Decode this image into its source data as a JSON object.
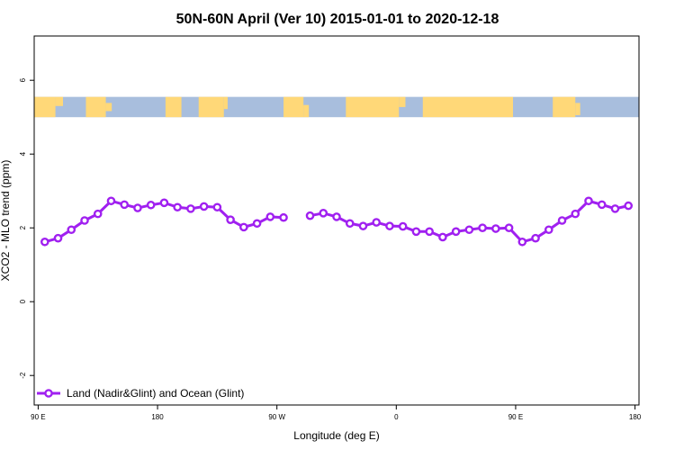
{
  "chart_data": {
    "type": "line",
    "title": "50N-60N April (Ver 10)   2015-01-01 to 2020-12-18",
    "xlabel": "Longitude (deg E)",
    "ylabel": "XCO2 - MLO trend (ppm)",
    "xlim": [
      90,
      450
    ],
    "ylim": [
      -2.8,
      7.2
    ],
    "x_ticks": [
      {
        "value": 90,
        "label": "90 E"
      },
      {
        "value": 180,
        "label": "180"
      },
      {
        "value": 270,
        "label": "90 W"
      },
      {
        "value": 360,
        "label": "0"
      },
      {
        "value": 450,
        "label": "90 E"
      },
      {
        "value": 540,
        "label": "180"
      }
    ],
    "y_ticks": [
      {
        "value": -2,
        "label": "-2"
      },
      {
        "value": 0,
        "label": "0"
      },
      {
        "value": 2,
        "label": "2"
      },
      {
        "value": 4,
        "label": "4"
      },
      {
        "value": 6,
        "label": "6"
      }
    ],
    "map_strip": {
      "ymin": 5.0,
      "ymax": 5.55,
      "land_color": "#FFD878",
      "ocean_color": "#A8BEDD"
    },
    "series": [
      {
        "name": "Land (Nadir&Glint) and Ocean (Glint)",
        "color": "#A020F0",
        "points": [
          [
            95,
            1.62
          ],
          [
            105,
            1.72
          ],
          [
            115,
            1.95
          ],
          [
            125,
            2.2
          ],
          [
            135,
            2.38
          ],
          [
            145,
            2.73
          ],
          [
            155,
            2.63
          ],
          [
            165,
            2.54
          ],
          [
            175,
            2.62
          ],
          [
            185,
            2.68
          ],
          [
            195,
            2.56
          ],
          [
            205,
            2.52
          ],
          [
            215,
            2.58
          ],
          [
            225,
            2.56
          ],
          [
            235,
            2.22
          ],
          [
            245,
            2.02
          ],
          [
            255,
            2.12
          ],
          [
            265,
            2.3
          ],
          [
            275,
            2.28
          ],
          null,
          [
            295,
            2.33
          ],
          [
            305,
            2.4
          ],
          [
            315,
            2.3
          ],
          [
            325,
            2.12
          ],
          [
            335,
            2.05
          ],
          [
            345,
            2.15
          ],
          [
            355,
            2.05
          ],
          [
            365,
            2.04
          ],
          [
            375,
            1.9
          ],
          [
            385,
            1.9
          ],
          [
            395,
            1.75
          ],
          [
            405,
            1.9
          ],
          [
            415,
            1.95
          ],
          [
            425,
            2.0
          ],
          [
            435,
            1.98
          ],
          [
            445,
            2.0
          ],
          [
            455,
            1.62
          ],
          [
            465,
            1.72
          ],
          [
            475,
            1.95
          ],
          [
            485,
            2.2
          ],
          [
            495,
            2.38
          ],
          [
            505,
            2.73
          ],
          [
            515,
            2.63
          ],
          [
            525,
            2.52
          ],
          [
            535,
            2.6
          ]
        ]
      }
    ],
    "legend": {
      "position": "bottom-left"
    },
    "grid": false
  }
}
